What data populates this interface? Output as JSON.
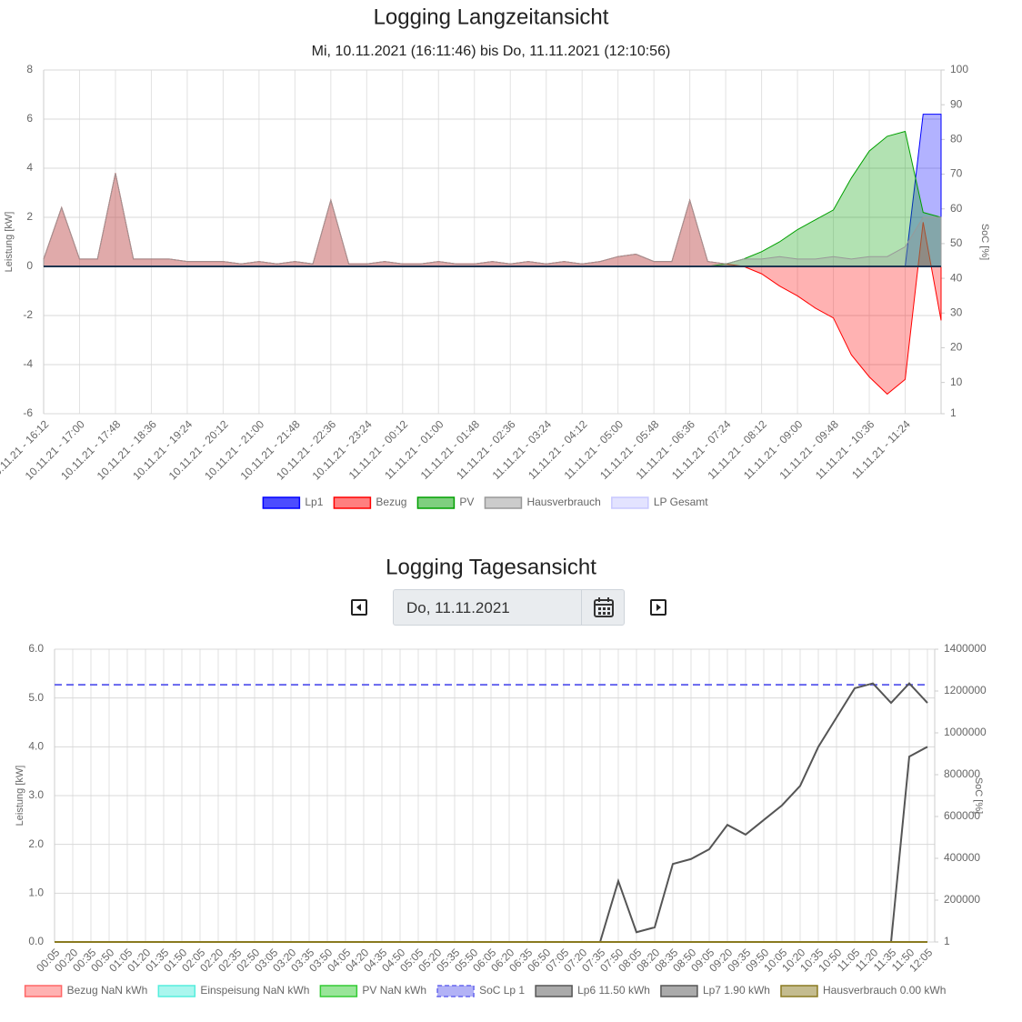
{
  "chart_data": [
    {
      "type": "area",
      "title": "Logging Langzeitansicht",
      "subtitle": "Mi, 10.11.2021 (16:11:46) bis Do, 11.11.2021 (12:10:56)",
      "y_label": "Leistung [kW]",
      "y2_label": "SoC [%]",
      "categories": [
        "10.11.21 - 16:12",
        null,
        "10.11.21 - 17:00",
        null,
        "10.11.21 - 17:48",
        null,
        "10.11.21 - 18:36",
        null,
        "10.11.21 - 19:24",
        null,
        "10.11.21 - 20:12",
        null,
        "10.11.21 - 21:00",
        null,
        "10.11.21 - 21:48",
        null,
        "10.11.21 - 22:36",
        null,
        "10.11.21 - 23:24",
        null,
        "11.11.21 - 00:12",
        null,
        "11.11.21 - 01:00",
        null,
        "11.11.21 - 01:48",
        null,
        "11.11.21 - 02:36",
        null,
        "11.11.21 - 03:24",
        null,
        "11.11.21 - 04:12",
        null,
        "11.11.21 - 05:00",
        null,
        "11.11.21 - 05:48",
        null,
        "11.11.21 - 06:36",
        null,
        "11.11.21 - 07:24",
        null,
        "11.11.21 - 08:12",
        null,
        "11.11.21 - 09:00",
        null,
        "11.11.21 - 09:48",
        null,
        "11.11.21 - 10:36",
        null,
        "11.11.21 - 11:24",
        null,
        null
      ],
      "series": [
        {
          "name": "Lp1",
          "color": "#0000ff",
          "values": [
            0,
            0,
            0,
            0,
            0,
            0,
            0,
            0,
            0,
            0,
            0,
            0,
            0,
            0,
            0,
            0,
            0,
            0,
            0,
            0,
            0,
            0,
            0,
            0,
            0,
            0,
            0,
            0,
            0,
            0,
            0,
            0,
            0,
            0,
            0,
            0,
            0,
            0,
            0,
            0,
            0,
            0,
            0,
            0,
            0,
            0,
            0,
            0,
            0,
            6.2,
            6.2
          ]
        },
        {
          "name": "Bezug",
          "color": "#ff0000",
          "values": [
            0.3,
            2.4,
            0.3,
            0.3,
            3.8,
            0.3,
            0.3,
            0.3,
            0.2,
            0.2,
            0.2,
            0.1,
            0.2,
            0.1,
            0.2,
            0.1,
            2.7,
            0.1,
            0.1,
            0.2,
            0.1,
            0.1,
            0.2,
            0.1,
            0.1,
            0.2,
            0.1,
            0.2,
            0.1,
            0.2,
            0.1,
            0.2,
            0.4,
            0.5,
            0.2,
            0.2,
            2.7,
            0.2,
            0.1,
            0,
            -0.3,
            -0.8,
            -1.2,
            -1.7,
            -2.1,
            -3.6,
            -4.5,
            -5.2,
            -4.6,
            1.8,
            -2.2
          ]
        },
        {
          "name": "PV",
          "color": "#00a000",
          "values": [
            0,
            0,
            0,
            0,
            0,
            0,
            0,
            0,
            0,
            0,
            0,
            0,
            0,
            0,
            0,
            0,
            0,
            0,
            0,
            0,
            0,
            0,
            0,
            0,
            0,
            0,
            0,
            0,
            0,
            0,
            0,
            0,
            0,
            0,
            0,
            0,
            0,
            0,
            0.1,
            0.3,
            0.6,
            1.0,
            1.5,
            1.9,
            2.3,
            3.6,
            4.7,
            5.3,
            5.5,
            2.2,
            2.0
          ]
        },
        {
          "name": "Hausverbrauch",
          "color": "#999999",
          "values": [
            0.3,
            2.4,
            0.3,
            0.3,
            3.8,
            0.3,
            0.3,
            0.3,
            0.2,
            0.2,
            0.2,
            0.1,
            0.2,
            0.1,
            0.2,
            0.1,
            2.7,
            0.1,
            0.1,
            0.2,
            0.1,
            0.1,
            0.2,
            0.1,
            0.1,
            0.2,
            0.1,
            0.2,
            0.1,
            0.2,
            0.1,
            0.2,
            0.4,
            0.5,
            0.2,
            0.2,
            2.7,
            0.2,
            0.1,
            0.3,
            0.3,
            0.4,
            0.3,
            0.3,
            0.4,
            0.3,
            0.4,
            0.4,
            0.8,
            2.0,
            2.0
          ]
        },
        {
          "name": "LP Gesamt",
          "color": "#c8c8ff",
          "values": [
            0,
            0,
            0,
            0,
            0,
            0,
            0,
            0,
            0,
            0,
            0,
            0,
            0,
            0,
            0,
            0,
            0,
            0,
            0,
            0,
            0,
            0,
            0,
            0,
            0,
            0,
            0,
            0,
            0,
            0,
            0,
            0,
            0,
            0,
            0,
            0,
            0,
            0,
            0,
            0,
            0,
            0,
            0,
            0,
            0,
            0,
            0,
            0,
            0,
            0,
            0
          ]
        }
      ],
      "ylim": [
        -6,
        8
      ],
      "yticks": [
        -6,
        -4,
        -2,
        0,
        2,
        4,
        6,
        8
      ],
      "y2lim": [
        1,
        100
      ],
      "y2ticks": [
        1,
        10,
        20,
        30,
        40,
        50,
        60,
        70,
        80,
        90,
        100
      ],
      "grid": true
    },
    {
      "type": "line",
      "title": "Logging Tagesansicht",
      "y_label": "Leistung [kW]",
      "y2_label": "SoC [%]",
      "categories": [
        "00:05",
        "00:20",
        "00:35",
        "00:50",
        "01:05",
        "01:20",
        "01:35",
        "01:50",
        "02:05",
        "02:20",
        "02:35",
        "02:50",
        "03:05",
        "03:20",
        "03:35",
        "03:50",
        "04:05",
        "04:20",
        "04:35",
        "04:50",
        "05:05",
        "05:20",
        "05:35",
        "05:50",
        "06:05",
        "06:20",
        "06:35",
        "06:50",
        "07:05",
        "07:20",
        "07:35",
        "07:50",
        "08:05",
        "08:20",
        "08:35",
        "08:50",
        "09:05",
        "09:20",
        "09:35",
        "09:50",
        "10:05",
        "10:20",
        "10:35",
        "10:50",
        "11:05",
        "11:20",
        "11:35",
        "11:50",
        "12:05"
      ],
      "series": [
        {
          "name": "Bezug NaN kWh",
          "color": "#ff6666",
          "values": [
            0,
            0,
            0,
            0,
            0,
            0,
            0,
            0,
            0,
            0,
            0,
            0,
            0,
            0,
            0,
            0,
            0,
            0,
            0,
            0,
            0,
            0,
            0,
            0,
            0,
            0,
            0,
            0,
            0,
            0,
            0,
            0,
            0,
            0,
            0,
            0,
            0,
            0,
            0,
            0,
            0,
            0,
            0,
            0,
            0,
            0,
            0,
            0,
            0
          ]
        },
        {
          "name": "Einspeisung NaN kWh",
          "color": "#55eedd",
          "values": [
            0,
            0,
            0,
            0,
            0,
            0,
            0,
            0,
            0,
            0,
            0,
            0,
            0,
            0,
            0,
            0,
            0,
            0,
            0,
            0,
            0,
            0,
            0,
            0,
            0,
            0,
            0,
            0,
            0,
            0,
            0,
            0,
            0,
            0,
            0,
            0,
            0,
            0,
            0,
            0,
            0,
            0,
            0,
            0,
            0,
            0,
            0,
            0,
            0
          ]
        },
        {
          "name": "PV NaN kWh",
          "color": "#33cc33",
          "values": [
            0,
            0,
            0,
            0,
            0,
            0,
            0,
            0,
            0,
            0,
            0,
            0,
            0,
            0,
            0,
            0,
            0,
            0,
            0,
            0,
            0,
            0,
            0,
            0,
            0,
            0,
            0,
            0,
            0,
            0,
            0,
            0,
            0,
            0,
            0,
            0,
            0,
            0,
            0,
            0,
            0,
            0,
            0,
            0,
            0,
            0,
            0,
            0,
            0
          ]
        },
        {
          "name": "SoC Lp 1",
          "color": "#6666ee",
          "axis": "y2",
          "dash": true,
          "values": [
            1230000,
            1230000,
            1230000,
            1230000,
            1230000,
            1230000,
            1230000,
            1230000,
            1230000,
            1230000,
            1230000,
            1230000,
            1230000,
            1230000,
            1230000,
            1230000,
            1230000,
            1230000,
            1230000,
            1230000,
            1230000,
            1230000,
            1230000,
            1230000,
            1230000,
            1230000,
            1230000,
            1230000,
            1230000,
            1230000,
            1230000,
            1230000,
            1230000,
            1230000,
            1230000,
            1230000,
            1230000,
            1230000,
            1230000,
            1230000,
            1230000,
            1230000,
            1230000,
            1230000,
            1230000,
            1230000,
            1230000,
            1230000,
            1230000
          ]
        },
        {
          "name": "Lp6 11.50 kWh",
          "color": "#555555",
          "values": [
            0,
            0,
            0,
            0,
            0,
            0,
            0,
            0,
            0,
            0,
            0,
            0,
            0,
            0,
            0,
            0,
            0,
            0,
            0,
            0,
            0,
            0,
            0,
            0,
            0,
            0,
            0,
            0,
            0,
            0,
            0,
            1.25,
            0.2,
            0.3,
            1.6,
            1.7,
            1.9,
            2.4,
            2.2,
            2.5,
            2.8,
            3.2,
            4.0,
            4.6,
            5.2,
            5.3,
            4.9,
            5.3,
            4.9
          ]
        },
        {
          "name": "Lp7 1.90 kWh",
          "color": "#555555",
          "values": [
            0,
            0,
            0,
            0,
            0,
            0,
            0,
            0,
            0,
            0,
            0,
            0,
            0,
            0,
            0,
            0,
            0,
            0,
            0,
            0,
            0,
            0,
            0,
            0,
            0,
            0,
            0,
            0,
            0,
            0,
            0,
            0,
            0,
            0,
            0,
            0,
            0,
            0,
            0,
            0,
            0,
            0,
            0,
            0,
            0,
            0,
            0,
            3.8,
            4.0
          ]
        },
        {
          "name": "Hausverbrauch 0.00 kWh",
          "color": "#8a7a20",
          "values": [
            0,
            0,
            0,
            0,
            0,
            0,
            0,
            0,
            0,
            0,
            0,
            0,
            0,
            0,
            0,
            0,
            0,
            0,
            0,
            0,
            0,
            0,
            0,
            0,
            0,
            0,
            0,
            0,
            0,
            0,
            0,
            0,
            0,
            0,
            0,
            0,
            0,
            0,
            0,
            0,
            0,
            0,
            0,
            0,
            0,
            0,
            0,
            0,
            0
          ]
        }
      ],
      "ylim": [
        0,
        6
      ],
      "yticks": [
        {
          "value": 0,
          "label": "0.0"
        },
        {
          "value": 1,
          "label": "1.0"
        },
        {
          "value": 2,
          "label": "2.0"
        },
        {
          "value": 3,
          "label": "3.0"
        },
        {
          "value": 4,
          "label": "4.0"
        },
        {
          "value": 5,
          "label": "5.0"
        },
        {
          "value": 6,
          "label": "6.0"
        }
      ],
      "y2lim": [
        1,
        1400000
      ],
      "y2ticks": [
        1,
        200000,
        400000,
        600000,
        800000,
        1000000,
        1200000,
        1400000
      ],
      "grid": true
    }
  ],
  "date_picker": {
    "value": "Do, 11.11.2021"
  }
}
